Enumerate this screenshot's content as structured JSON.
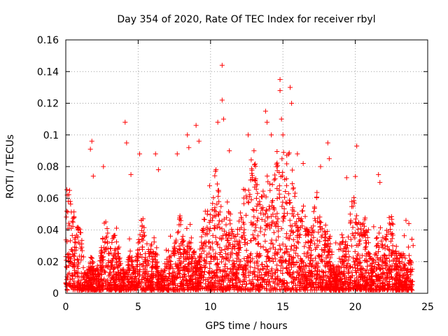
{
  "chart_data": {
    "type": "scatter",
    "title": "Day 354 of 2020, Rate Of TEC Index for receiver rbyl",
    "xlabel": "GPS time / hours",
    "ylabel": "ROTI / TECUs",
    "xlim": [
      0,
      25
    ],
    "ylim": [
      0,
      0.16
    ],
    "xticks": [
      0,
      5,
      10,
      15,
      20,
      25
    ],
    "yticks": [
      0,
      0.02,
      0.04,
      0.06,
      0.08,
      0.1,
      0.12,
      0.14,
      0.16
    ],
    "xtick_labels": [
      "0",
      "5",
      "10",
      "15",
      "20",
      "25"
    ],
    "ytick_labels": [
      "0",
      "0.02",
      "0.04",
      "0.06",
      "0.08",
      "0.1",
      "0.12",
      "0.14",
      "0.16"
    ],
    "grid": true,
    "marker": "+",
    "color": "#ff0000",
    "series": [
      {
        "name": "ROTI",
        "points": [
          [
            0.1,
            0.062
          ],
          [
            0.3,
            0.058
          ],
          [
            0.5,
            0.045
          ],
          [
            1.7,
            0.091
          ],
          [
            1.8,
            0.096
          ],
          [
            1.9,
            0.074
          ],
          [
            2.6,
            0.08
          ],
          [
            4.1,
            0.108
          ],
          [
            4.2,
            0.095
          ],
          [
            4.5,
            0.075
          ],
          [
            5.1,
            0.088
          ],
          [
            6.2,
            0.088
          ],
          [
            6.4,
            0.078
          ],
          [
            7.7,
            0.088
          ],
          [
            8.4,
            0.1
          ],
          [
            8.5,
            0.092
          ],
          [
            9.0,
            0.106
          ],
          [
            9.2,
            0.096
          ],
          [
            10.5,
            0.108
          ],
          [
            10.8,
            0.144
          ],
          [
            10.8,
            0.122
          ],
          [
            10.9,
            0.11
          ],
          [
            11.3,
            0.09
          ],
          [
            12.6,
            0.1
          ],
          [
            13.0,
            0.09
          ],
          [
            13.8,
            0.115
          ],
          [
            13.9,
            0.108
          ],
          [
            14.2,
            0.1
          ],
          [
            14.8,
            0.135
          ],
          [
            14.8,
            0.128
          ],
          [
            14.9,
            0.11
          ],
          [
            15.0,
            0.1
          ],
          [
            15.5,
            0.13
          ],
          [
            15.6,
            0.12
          ],
          [
            16.0,
            0.088
          ],
          [
            16.4,
            0.082
          ],
          [
            17.6,
            0.08
          ],
          [
            18.1,
            0.095
          ],
          [
            18.2,
            0.085
          ],
          [
            19.4,
            0.073
          ],
          [
            20.1,
            0.093
          ],
          [
            21.6,
            0.075
          ],
          [
            21.7,
            0.07
          ],
          [
            23.5,
            0.046
          ],
          [
            23.7,
            0.044
          ]
        ]
      }
    ]
  }
}
